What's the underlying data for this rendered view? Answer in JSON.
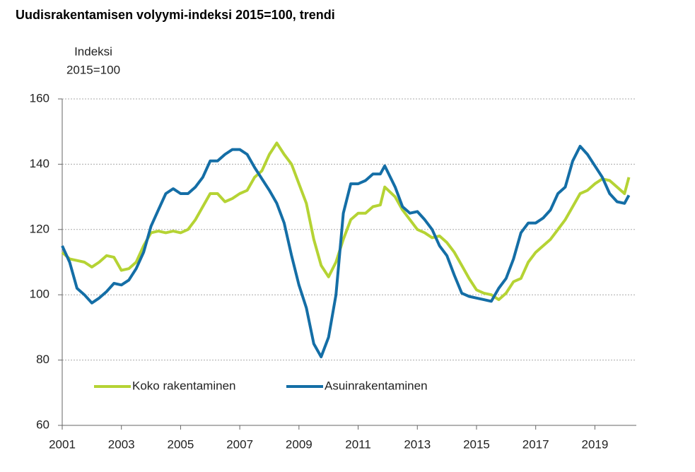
{
  "chart_data": {
    "type": "line",
    "title": "Uudisrakentamisen volyymi-indeksi 2015=100, trendi",
    "y_label": [
      "Indeksi",
      "2015=100"
    ],
    "x": [
      2001,
      2001.25,
      2001.5,
      2001.75,
      2002,
      2002.25,
      2002.5,
      2002.75,
      2003,
      2003.25,
      2003.5,
      2003.75,
      2004,
      2004.25,
      2004.5,
      2004.75,
      2005,
      2005.25,
      2005.5,
      2005.75,
      2006,
      2006.25,
      2006.5,
      2006.75,
      2007,
      2007.25,
      2007.5,
      2007.75,
      2008,
      2008.25,
      2008.5,
      2008.75,
      2009,
      2009.25,
      2009.5,
      2009.75,
      2010,
      2010.25,
      2010.5,
      2010.75,
      2011,
      2011.25,
      2011.5,
      2011.75,
      2011.9,
      2012.25,
      2012.5,
      2012.75,
      2013,
      2013.25,
      2013.5,
      2013.75,
      2014,
      2014.25,
      2014.5,
      2014.75,
      2015,
      2015.25,
      2015.5,
      2015.75,
      2016,
      2016.25,
      2016.5,
      2016.75,
      2017,
      2017.25,
      2017.5,
      2017.75,
      2018,
      2018.25,
      2018.5,
      2018.75,
      2019,
      2019.25,
      2019.5,
      2019.75,
      2020,
      2020.15
    ],
    "series": [
      {
        "name": "Koko rakentaminen",
        "color": "#b5d334",
        "values": [
          113,
          111,
          110.5,
          110,
          108.5,
          110,
          112,
          111.5,
          107.5,
          108,
          110,
          115,
          119,
          119.5,
          119,
          119.5,
          119,
          120,
          123,
          127,
          131,
          131,
          128.5,
          129.5,
          131,
          132,
          136,
          138,
          143,
          146.5,
          143,
          140,
          134,
          128,
          117,
          109,
          105.5,
          110,
          117,
          123,
          125,
          125,
          127,
          127.5,
          133,
          130,
          126,
          123,
          120,
          119,
          117.5,
          118,
          116,
          113,
          109,
          105,
          101.5,
          100.5,
          100,
          98.5,
          100.5,
          104,
          105,
          110,
          113,
          115,
          117,
          120,
          123,
          127,
          131,
          132,
          134,
          135.5,
          135,
          133,
          131,
          136
        ]
      },
      {
        "name": "Asuinrakentaminen",
        "color": "#146ea6",
        "values": [
          115,
          110,
          102,
          100,
          97.5,
          99,
          101,
          103.5,
          103,
          104.5,
          108,
          113,
          121,
          126,
          131,
          132.5,
          131,
          131,
          133,
          136,
          141,
          141,
          143,
          144.5,
          144.5,
          143,
          139,
          135.5,
          132,
          128,
          122,
          112,
          103,
          96,
          85,
          81,
          87,
          100,
          125,
          134,
          134,
          135,
          137,
          137,
          139.5,
          133,
          127,
          125,
          125.5,
          123,
          120,
          115,
          112,
          106,
          100.5,
          99.5,
          99,
          98.5,
          98,
          102,
          105,
          111,
          119,
          122,
          122,
          123.5,
          126,
          131,
          133,
          141,
          145.5,
          143,
          139.5,
          136,
          131,
          128.5,
          128,
          130.5
        ]
      }
    ],
    "xlim": [
      2001,
      2020.4
    ],
    "xticks": [
      2001,
      2003,
      2005,
      2007,
      2009,
      2011,
      2013,
      2015,
      2017,
      2019
    ],
    "ylim": [
      60,
      160
    ],
    "yticks": [
      60,
      80,
      100,
      120,
      140,
      160
    ],
    "grid": true,
    "legend": "bottom-left"
  }
}
